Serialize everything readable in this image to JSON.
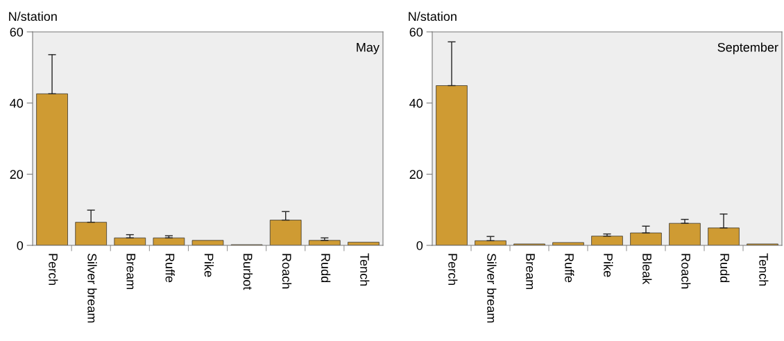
{
  "chart_data": [
    {
      "type": "bar",
      "title": "May",
      "ylabel": "N/station",
      "categories": [
        "Perch",
        "Silver bream",
        "Bream",
        "Ruffe",
        "Pike",
        "Burbot",
        "Roach",
        "Rudd",
        "Tench"
      ],
      "values": [
        42.6,
        6.5,
        2.1,
        2.1,
        1.4,
        0.2,
        7.1,
        1.4,
        0.9
      ],
      "errors": [
        [
          42.6,
          53.6
        ],
        [
          6.5,
          9.9
        ],
        [
          2.1,
          3.0
        ],
        [
          2.1,
          2.7
        ],
        null,
        null,
        [
          7.1,
          9.5
        ],
        [
          1.4,
          2.1
        ],
        null
      ],
      "color": "#cf9b33",
      "ylim": [
        0,
        60
      ],
      "yticks": [
        0,
        20,
        40,
        60
      ],
      "grid": false
    },
    {
      "type": "bar",
      "title": "September",
      "ylabel": "N/station",
      "categories": [
        "Perch",
        "Silver bream",
        "Bream",
        "Ruffe",
        "Pike",
        "Bleak",
        "Roach",
        "Rudd",
        "Tench"
      ],
      "values": [
        44.9,
        1.3,
        0.4,
        0.8,
        2.6,
        3.5,
        6.2,
        4.9,
        0.4
      ],
      "errors": [
        [
          44.9,
          57.2
        ],
        [
          1.3,
          2.5
        ],
        null,
        null,
        [
          2.6,
          3.2
        ],
        [
          3.5,
          5.4
        ],
        [
          6.2,
          7.3
        ],
        [
          4.9,
          8.8
        ],
        null
      ],
      "color": "#cf9b33",
      "ylim": [
        0,
        60
      ],
      "yticks": [
        0,
        20,
        40,
        60
      ],
      "grid": false
    }
  ]
}
